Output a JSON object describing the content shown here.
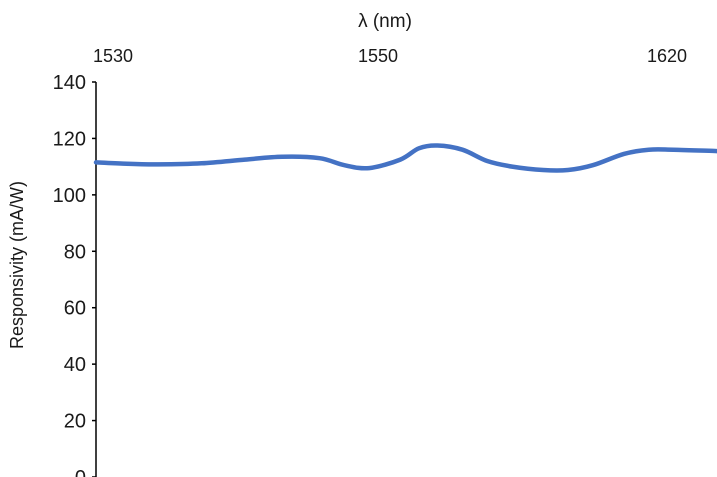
{
  "chart_data": {
    "type": "line",
    "title": "",
    "xlabel": "λ (nm)",
    "ylabel": "Responsivity (mA/W)",
    "x_axis_position": "top",
    "grid": false,
    "legend": "none",
    "x_ticks": [
      1530,
      1550,
      1620
    ],
    "y_ticks": [
      0,
      20,
      40,
      60,
      80,
      100,
      120,
      140
    ],
    "ylim": [
      0,
      140
    ],
    "line_color": "#4472c4",
    "series": [
      {
        "x": [
          0,
          0.05,
          0.1,
          0.17,
          0.24,
          0.3,
          0.36,
          0.4,
          0.44,
          0.49,
          0.52,
          0.55,
          0.59,
          0.63,
          0.67,
          0.72,
          0.76,
          0.8,
          0.85,
          0.89,
          0.93,
          1.0
        ],
        "values": [
          111.5,
          111.0,
          110.8,
          111.2,
          112.5,
          113.5,
          113.0,
          110.5,
          109.5,
          112.5,
          116.5,
          117.5,
          116.0,
          112.0,
          110.0,
          108.8,
          108.8,
          110.5,
          114.5,
          116.0,
          116.0,
          115.5
        ]
      }
    ]
  }
}
